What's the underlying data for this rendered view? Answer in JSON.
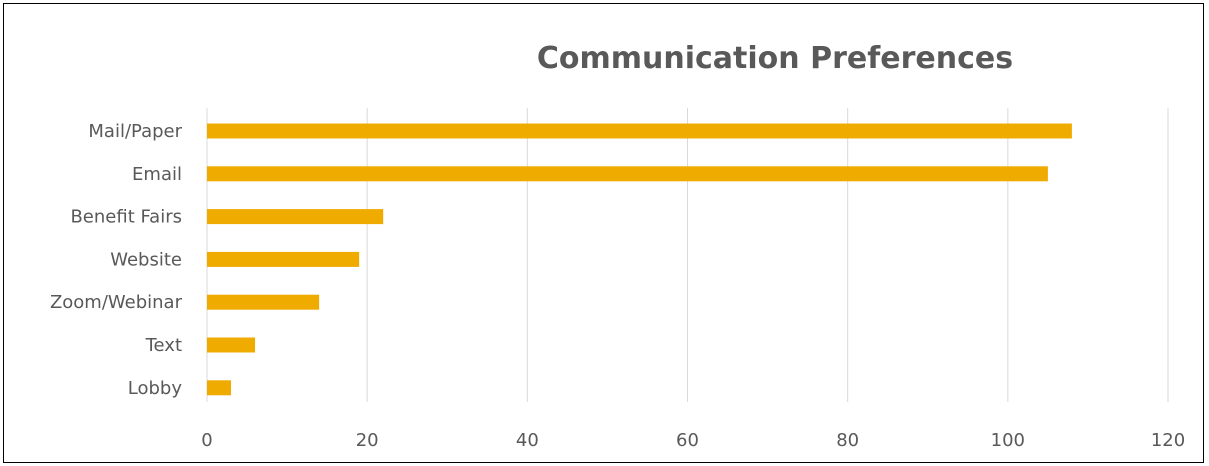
{
  "chart_data": {
    "type": "bar",
    "orientation": "horizontal",
    "title": "Communication Preferences",
    "categories": [
      "Mail/Paper",
      "Email",
      "Benefit Fairs",
      "Website",
      "Zoom/Webinar",
      "Text",
      "Lobby"
    ],
    "values": [
      108,
      105,
      22,
      19,
      14,
      6,
      3
    ],
    "xlim": [
      0,
      120
    ],
    "x_ticks": [
      0,
      20,
      40,
      60,
      80,
      100,
      120
    ],
    "grid": true,
    "legend": "none",
    "bar_color": "#F0AB00",
    "grid_color": "#D9D9D9",
    "text_color": "#595959"
  }
}
